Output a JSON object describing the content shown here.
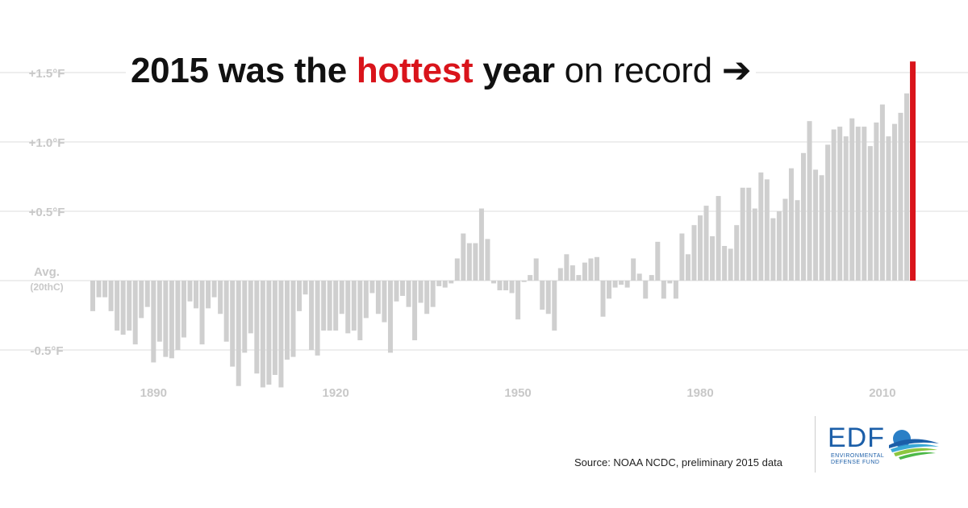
{
  "title": {
    "part1": "2015 was the ",
    "highlight": "hottest",
    "part2": " year",
    "part3": " on record",
    "arrow": "➔"
  },
  "source": "Source: NOAA NCDC, preliminary 2015 data",
  "logo": {
    "word": "EDF",
    "line1": "ENVIRONMENTAL",
    "line2": "DEFENSE FUND"
  },
  "colors": {
    "bar": "#cfcfcf",
    "highlight": "#d9141b",
    "grid": "#dddddd",
    "axis_text": "#c8c8c8"
  },
  "chart_data": {
    "type": "bar",
    "title": "2015 was the hottest year on record",
    "ylabel": "",
    "xlabel": "",
    "ylim": [
      -0.9,
      1.6
    ],
    "xlim": [
      1880,
      2015
    ],
    "y_ticks": [
      {
        "value": 1.5,
        "label": "+1.5°F"
      },
      {
        "value": 1.0,
        "label": "+1.0°F"
      },
      {
        "value": 0.5,
        "label": "+0.5°F"
      },
      {
        "value": 0.0,
        "label": "Avg.",
        "sublabel": "(20thC)"
      },
      {
        "value": -0.5,
        "label": "-0.5°F"
      }
    ],
    "x_ticks": [
      1890,
      1920,
      1950,
      1980,
      2010
    ],
    "highlight_year": 2015,
    "years_start": 1880,
    "values": [
      -0.22,
      -0.12,
      -0.12,
      -0.22,
      -0.36,
      -0.39,
      -0.36,
      -0.46,
      -0.27,
      -0.19,
      -0.59,
      -0.44,
      -0.55,
      -0.56,
      -0.5,
      -0.41,
      -0.15,
      -0.2,
      -0.46,
      -0.2,
      -0.12,
      -0.24,
      -0.44,
      -0.62,
      -0.76,
      -0.52,
      -0.38,
      -0.67,
      -0.77,
      -0.75,
      -0.68,
      -0.77,
      -0.57,
      -0.55,
      -0.22,
      -0.1,
      -0.5,
      -0.54,
      -0.36,
      -0.36,
      -0.36,
      -0.24,
      -0.38,
      -0.36,
      -0.43,
      -0.27,
      -0.09,
      -0.24,
      -0.3,
      -0.52,
      -0.15,
      -0.11,
      -0.19,
      -0.43,
      -0.16,
      -0.24,
      -0.19,
      -0.04,
      -0.05,
      -0.02,
      0.16,
      0.34,
      0.27,
      0.27,
      0.52,
      0.3,
      -0.02,
      -0.07,
      -0.07,
      -0.09,
      -0.28,
      -0.01,
      0.04,
      0.16,
      -0.21,
      -0.24,
      -0.36,
      0.09,
      0.19,
      0.11,
      0.04,
      0.13,
      0.16,
      0.17,
      -0.26,
      -0.13,
      -0.05,
      -0.03,
      -0.05,
      0.16,
      0.05,
      -0.13,
      0.04,
      0.28,
      -0.13,
      -0.02,
      -0.13,
      0.34,
      0.19,
      0.4,
      0.47,
      0.54,
      0.32,
      0.61,
      0.25,
      0.23,
      0.4,
      0.67,
      0.67,
      0.52,
      0.78,
      0.73,
      0.45,
      0.5,
      0.59,
      0.81,
      0.58,
      0.92,
      1.15,
      0.8,
      0.76,
      0.98,
      1.09,
      1.11,
      1.04,
      1.17,
      1.11,
      1.11,
      0.97,
      1.14,
      1.27,
      1.04,
      1.13,
      1.21,
      1.35,
      1.58
    ]
  }
}
